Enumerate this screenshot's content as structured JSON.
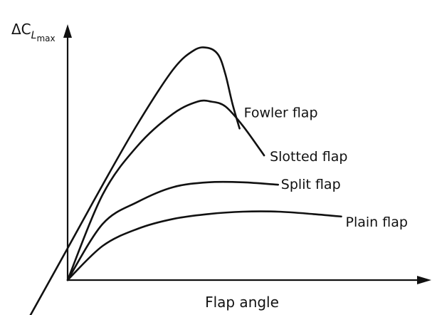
{
  "chart_data": {
    "type": "line",
    "xlabel": "Flap angle",
    "ylabel": {
      "delta": "ΔC",
      "sub_l": "L",
      "sub_max": "max"
    },
    "xlim": [
      0,
      100
    ],
    "ylim": [
      0,
      100
    ],
    "grid": false,
    "series": [
      {
        "name": "Fowler flap",
        "x": [
          -12,
          0,
          10,
          20,
          30,
          36,
          40,
          43,
          45,
          47,
          49
        ],
        "y": [
          -18,
          13,
          39,
          64,
          86,
          94,
          95,
          92,
          84,
          72,
          62
        ]
      },
      {
        "name": "Slotted flap",
        "x": [
          0,
          10,
          20,
          30,
          37,
          41,
          45,
          50,
          56
        ],
        "y": [
          0,
          35,
          55,
          68,
          73,
          73,
          71,
          63,
          51
        ]
      },
      {
        "name": "Split flap",
        "x": [
          0,
          10,
          20,
          30,
          40,
          50,
          60
        ],
        "y": [
          0,
          23,
          32,
          38,
          40,
          40,
          39
        ]
      },
      {
        "name": "Plain flap",
        "x": [
          0,
          10,
          20,
          30,
          40,
          50,
          60,
          70,
          78
        ],
        "y": [
          0,
          14,
          21,
          25,
          27,
          28,
          28,
          27,
          26
        ]
      }
    ]
  }
}
